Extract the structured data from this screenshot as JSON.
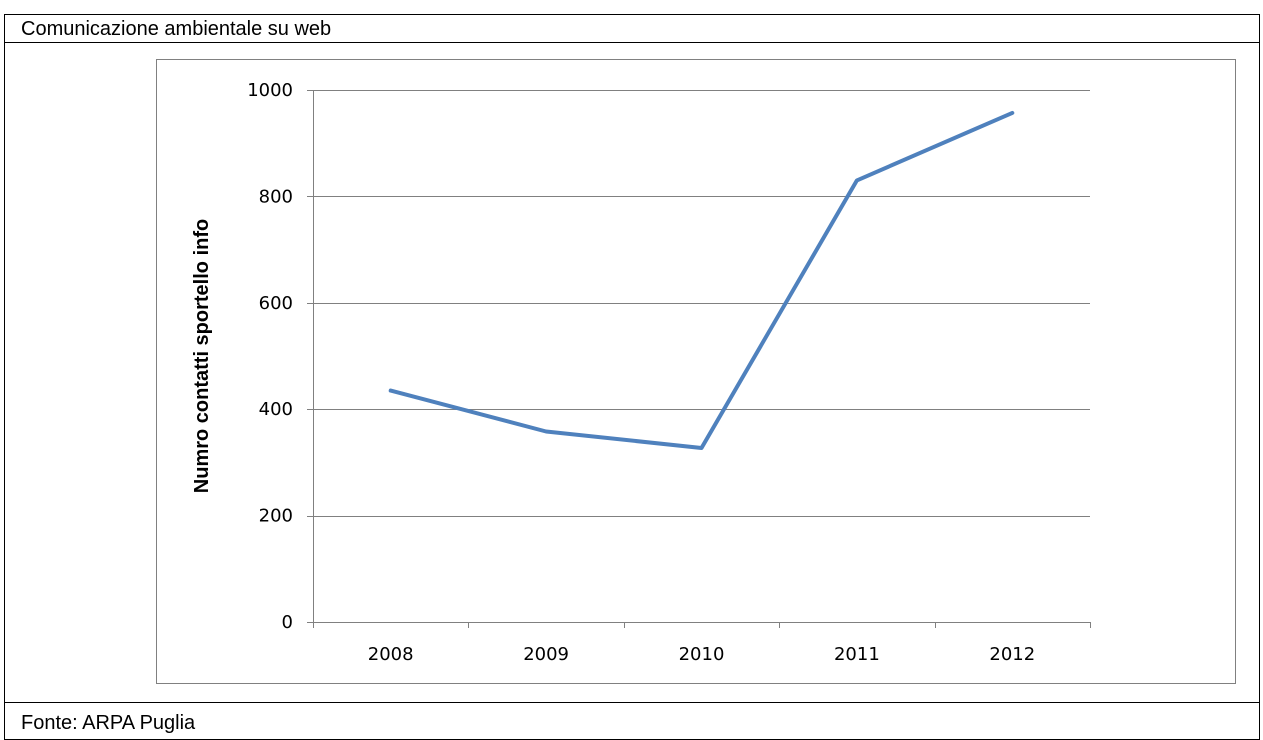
{
  "header": {
    "title": "Comunicazione ambientale su web"
  },
  "footer": {
    "source": "Fonte: ARPA Puglia"
  },
  "colors": {
    "series_line": "#4F81BD",
    "gridline": "#808080",
    "axis": "#808080",
    "chart_border": "#808080"
  },
  "chart_data": {
    "type": "line",
    "categories": [
      "2008",
      "2009",
      "2010",
      "2011",
      "2012"
    ],
    "series": [
      {
        "values": [
          435,
          358,
          327,
          830,
          957
        ]
      }
    ],
    "ylabel": "Numro contatti sportello info",
    "ylim": [
      0,
      1000
    ],
    "yticks": [
      0,
      200,
      400,
      600,
      800,
      1000
    ],
    "grid": true,
    "legend": "none"
  }
}
